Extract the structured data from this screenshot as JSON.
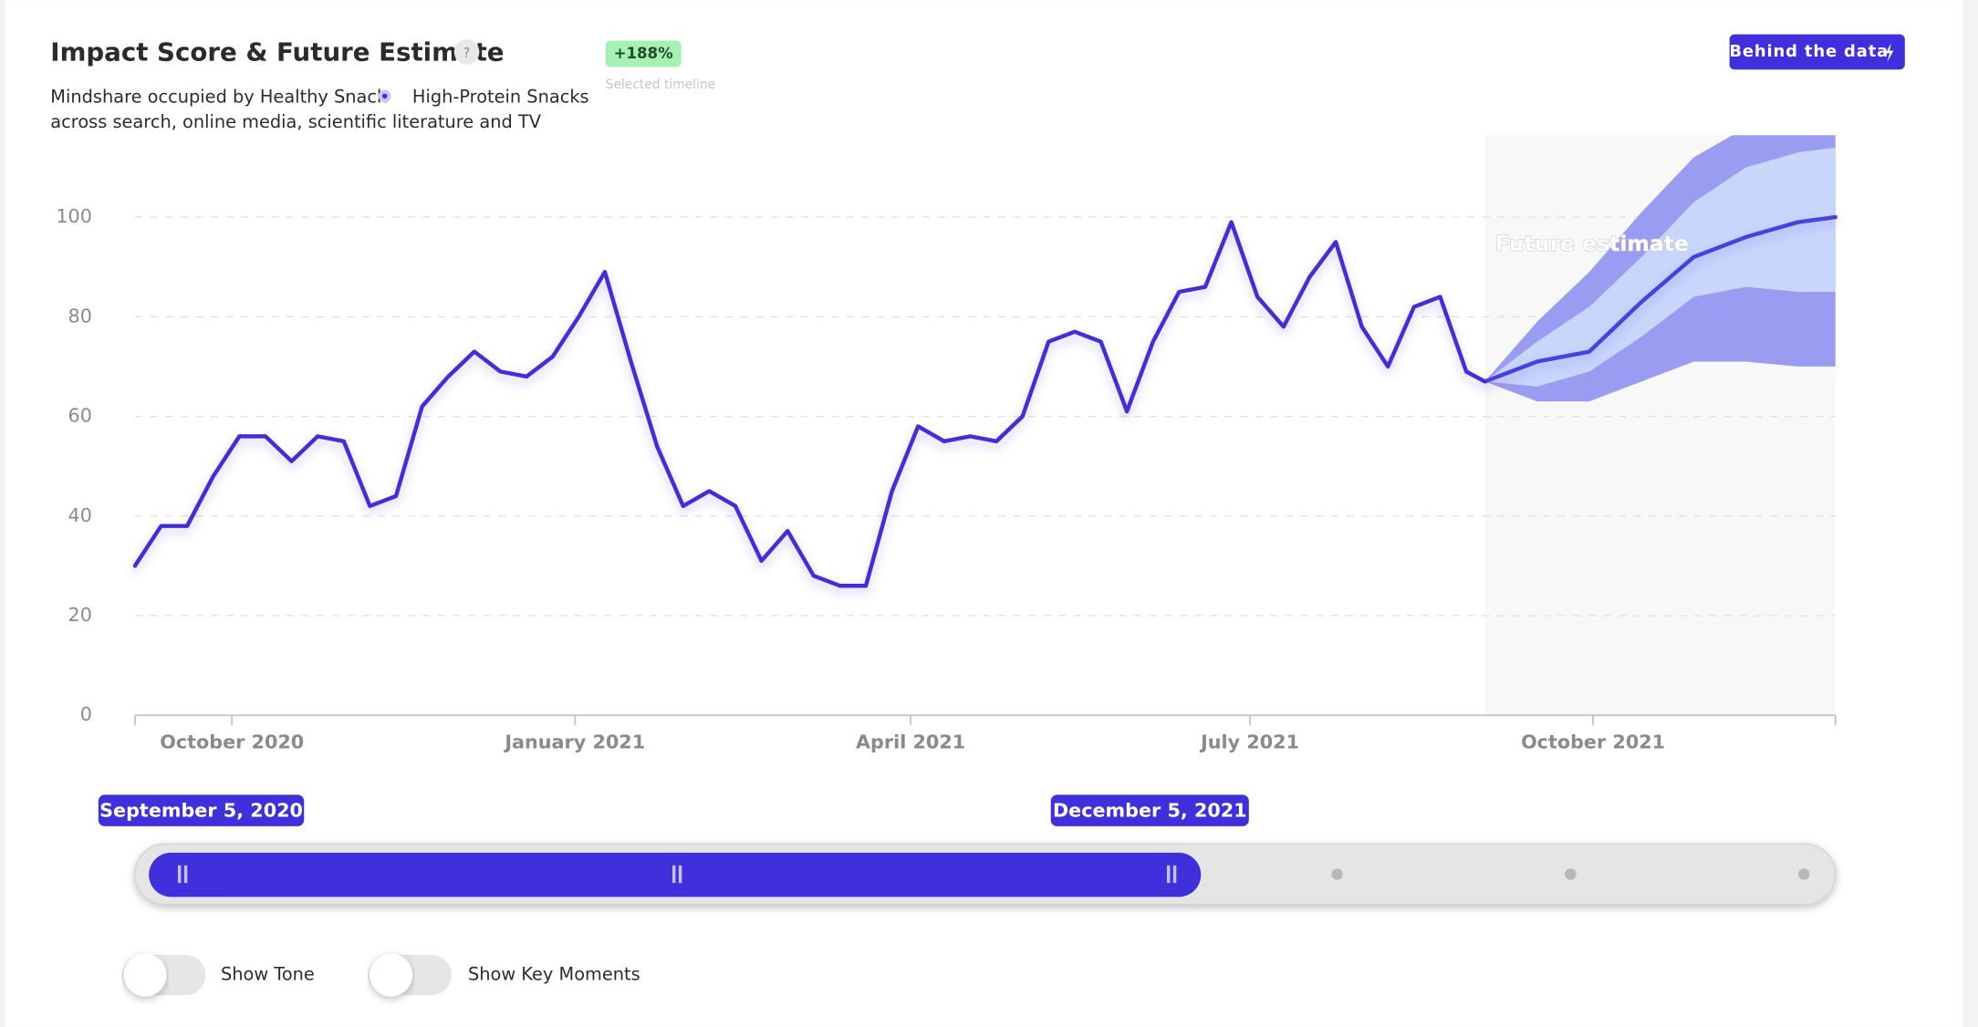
{
  "header": {
    "title": "Impact Score & Future Estimate",
    "help": "?",
    "badge": "+188%",
    "badge_caption": "Selected timeline",
    "subtitle_start": "Mindshare occupied by Healthy Snack",
    "subtitle_topic": "High-Protein Snacks",
    "subtitle_end": "across search, online media, scientific literature and TV",
    "button": "Behind the data"
  },
  "chart_data": {
    "type": "line",
    "color": "#3f2fdc",
    "annotation": "Future estimate",
    "xlim": [
      "2020-09-05",
      "2021-12-05"
    ],
    "xticks": [
      {
        "value": "2020-10-01",
        "label": "October 2020"
      },
      {
        "value": "2021-01-01",
        "label": "January 2021"
      },
      {
        "value": "2021-04-01",
        "label": "April 2021"
      },
      {
        "value": "2021-07-01",
        "label": "July 2021"
      },
      {
        "value": "2021-10-01",
        "label": "October 2021"
      }
    ],
    "ylim": [
      0,
      100
    ],
    "yticks": [
      0,
      20,
      40,
      60,
      80,
      100
    ],
    "grid": true,
    "x": [
      "2020-09-05",
      "2020-09-12",
      "2020-09-19",
      "2020-09-26",
      "2020-10-03",
      "2020-10-10",
      "2020-10-17",
      "2020-10-24",
      "2020-10-31",
      "2020-11-07",
      "2020-11-14",
      "2020-11-21",
      "2020-11-28",
      "2020-12-05",
      "2020-12-12",
      "2020-12-19",
      "2020-12-26",
      "2021-01-02",
      "2021-01-09",
      "2021-01-16",
      "2021-01-23",
      "2021-01-30",
      "2021-02-06",
      "2021-02-13",
      "2021-02-20",
      "2021-02-27",
      "2021-03-06",
      "2021-03-13",
      "2021-03-20",
      "2021-03-27",
      "2021-04-03",
      "2021-04-10",
      "2021-04-17",
      "2021-04-24",
      "2021-05-01",
      "2021-05-08",
      "2021-05-15",
      "2021-05-22",
      "2021-05-29",
      "2021-06-05",
      "2021-06-12",
      "2021-06-19",
      "2021-06-26",
      "2021-07-03",
      "2021-07-10",
      "2021-07-17",
      "2021-07-24",
      "2021-07-31",
      "2021-08-07",
      "2021-08-14",
      "2021-08-21",
      "2021-08-28",
      "2021-09-02"
    ],
    "values": [
      30,
      38,
      38,
      48,
      56,
      56,
      51,
      56,
      55,
      42,
      44,
      62,
      68,
      73,
      69,
      68,
      72,
      80,
      89,
      71,
      54,
      42,
      45,
      42,
      31,
      37,
      28,
      26,
      26,
      45,
      58,
      55,
      56,
      55,
      60,
      75,
      77,
      75,
      61,
      75,
      85,
      86,
      99,
      84,
      78,
      88,
      95,
      78,
      70,
      82,
      84,
      69,
      67
    ],
    "forecast": {
      "color": "#4a3fe0",
      "inner_color": "#c8d6fb",
      "outer_color": "#9a9cf2",
      "x": [
        "2021-09-02",
        "2021-09-16",
        "2021-09-30",
        "2021-10-14",
        "2021-10-28",
        "2021-11-11",
        "2021-11-25",
        "2021-12-05"
      ],
      "values": [
        67,
        71,
        73,
        83,
        92,
        96,
        99,
        100
      ],
      "inner_low": [
        67,
        66,
        69,
        76,
        84,
        86,
        85,
        85
      ],
      "inner_high": [
        67,
        75,
        82,
        92,
        103,
        110,
        113,
        114
      ],
      "outer_low": [
        67,
        63,
        63,
        67,
        71,
        71,
        70,
        70
      ],
      "outer_high": [
        67,
        79,
        89,
        101,
        112,
        118,
        120,
        121
      ]
    }
  },
  "slider": {
    "start": "September 5, 2020",
    "end": "December 5, 2021"
  },
  "toggles": [
    "Show Tone",
    "Show Key Moments"
  ]
}
